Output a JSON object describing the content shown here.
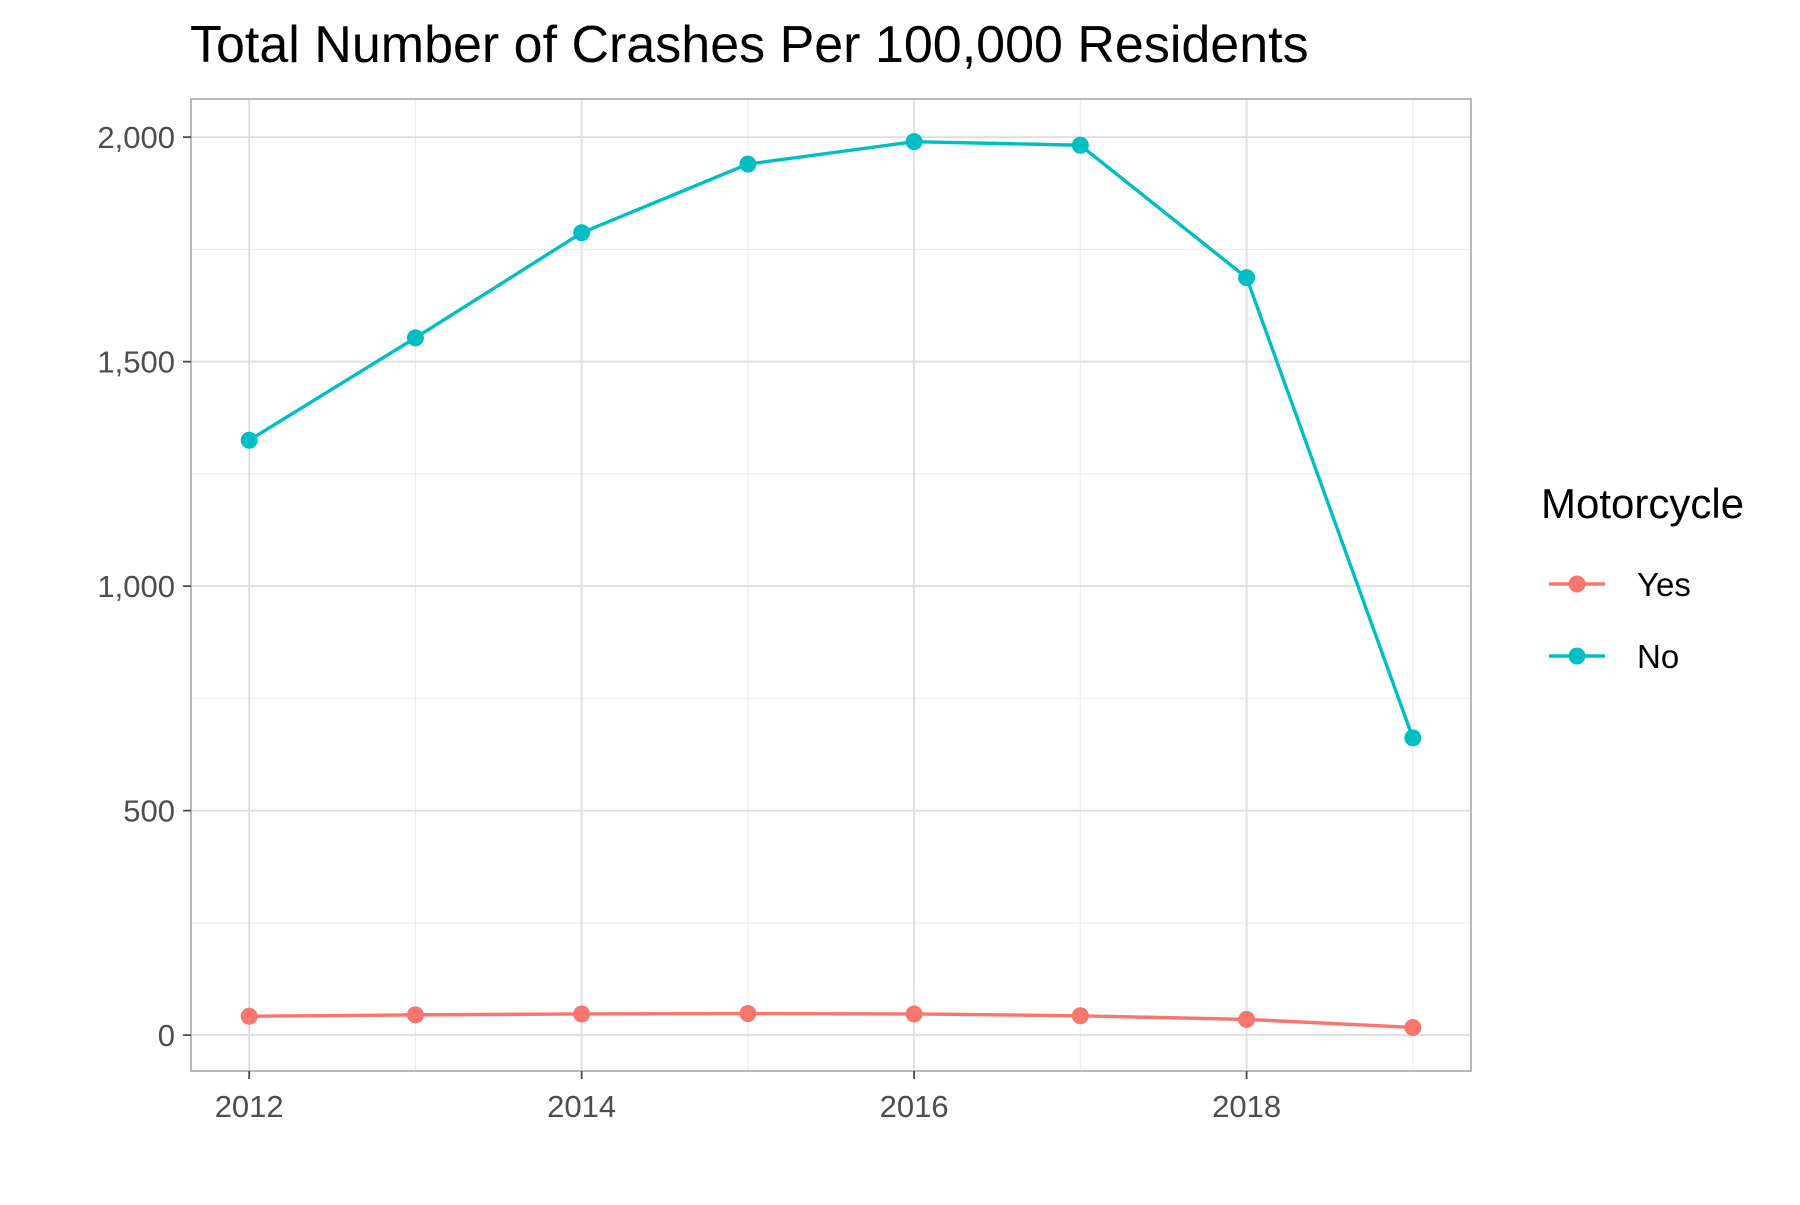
{
  "chart_data": {
    "type": "line",
    "title": "Total Number of Crashes Per 100,000 Residents",
    "xlabel": "",
    "ylabel": "",
    "x": [
      2012,
      2013,
      2014,
      2015,
      2016,
      2017,
      2018,
      2019
    ],
    "x_ticks": [
      2012,
      2014,
      2016,
      2018
    ],
    "x_tick_labels": [
      "2012",
      "2014",
      "2016",
      "2018"
    ],
    "y_ticks": [
      0,
      500,
      1000,
      1500,
      2000
    ],
    "y_tick_labels": [
      "0",
      "500",
      "1,000",
      "1,500",
      "2,000"
    ],
    "xlim": [
      2011.65,
      2019.35
    ],
    "ylim": [
      -80,
      2085
    ],
    "grid": true,
    "legend": {
      "title": "Motorcycle",
      "position": "right"
    },
    "series": [
      {
        "name": "Yes",
        "color": "#F8766D",
        "values": [
          42,
          45,
          47,
          48,
          47,
          43,
          35,
          17
        ]
      },
      {
        "name": "No",
        "color": "#00BFC4",
        "values": [
          1325,
          1553,
          1787,
          1940,
          1990,
          1982,
          1687,
          662
        ]
      }
    ]
  }
}
